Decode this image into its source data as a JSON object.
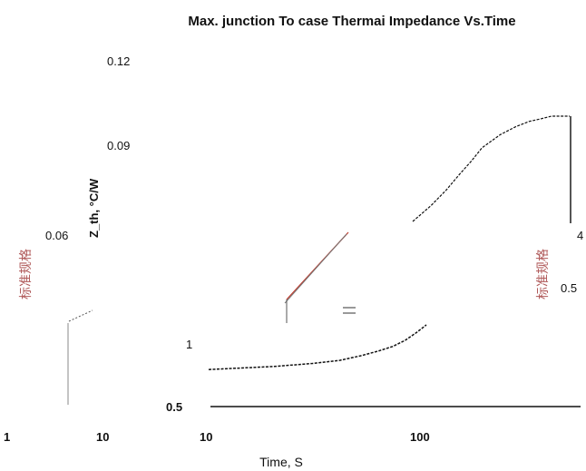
{
  "chart_data": {
    "type": "line",
    "title": "Max. junction To case Thermai Impedance Vs.Time",
    "ylabel": "Z_th, °C/W",
    "xlabel": "Time, S",
    "side_label_left": "标准规格",
    "side_label_right": "标准规格",
    "y_ticks": [
      "0.12",
      "0.09",
      "0.06",
      "1",
      "0.5"
    ],
    "right_ticks": [
      "4",
      "0.5"
    ],
    "x_ticks": [
      "1",
      "10",
      "10",
      "100"
    ],
    "x_scale": "log",
    "grid": false,
    "legend": "none",
    "series": [
      {
        "x": [
          10,
          20,
          30,
          40,
          50,
          60,
          70,
          80,
          90,
          100
        ],
        "values": [
          0.74,
          0.76,
          0.78,
          0.8,
          0.83,
          0.86,
          0.89,
          0.93,
          0.98,
          1.03
        ]
      },
      {
        "x": [
          100,
          120,
          140,
          160,
          180,
          200,
          240,
          280,
          320,
          360,
          400,
          440,
          480
        ],
        "values": [
          0.06,
          0.066,
          0.072,
          0.078,
          0.083,
          0.088,
          0.093,
          0.096,
          0.098,
          0.099,
          0.1,
          0.1,
          0.1
        ]
      }
    ]
  },
  "colors": {
    "curve": "#111111",
    "accent_red": "#c0392b",
    "axis": "#111111",
    "faded": "#999999"
  }
}
